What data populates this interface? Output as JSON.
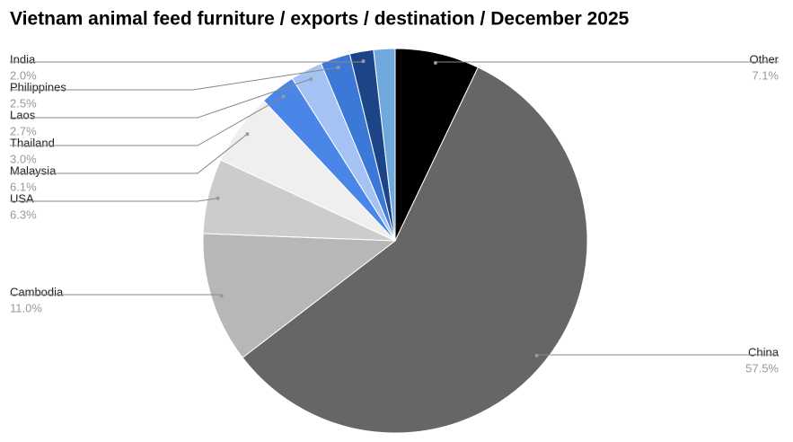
{
  "chart_data": {
    "type": "pie",
    "title": "Vietnam animal feed furniture / exports / destination / December 2025",
    "categories": [
      "Other",
      "China",
      "Cambodia",
      "USA",
      "Malaysia",
      "Thailand",
      "Laos",
      "Philippines",
      "India",
      null
    ],
    "values": [
      7.1,
      57.5,
      11.0,
      6.3,
      6.1,
      3.0,
      2.7,
      2.5,
      2.0,
      1.8
    ],
    "value_labels": [
      "7.1%",
      "57.5%",
      "11.0%",
      "6.3%",
      "6.1%",
      "3.0%",
      "2.7%",
      "2.5%",
      "2.0%",
      null
    ],
    "colors": [
      "#000000",
      "#666666",
      "#b7b7b7",
      "#cccccc",
      "#efefef",
      "#4a86e8",
      "#a4c2f4",
      "#3c78d8",
      "#1c4587",
      "#6fa8dc"
    ]
  }
}
